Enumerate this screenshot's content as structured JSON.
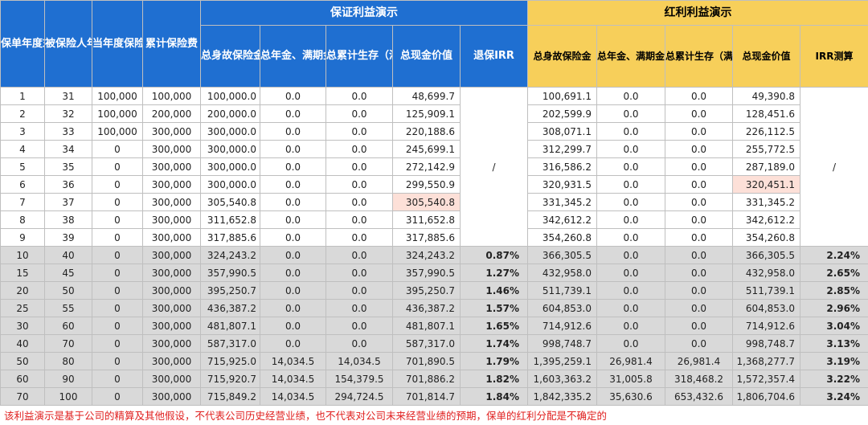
{
  "headers": {
    "policy_year": "保单年度末",
    "insured_age": "被保险人年龄",
    "annual_premium": "当年度保险费",
    "cumulative_premium": "累计保险费",
    "guaranteed_title": "保证利益演示",
    "dividend_title": "红利利益演示",
    "guaranteed_cols": [
      "总身故保险金",
      "总年金、满期金和满期现金红利",
      "总累计生存（满期）保险金和满期现金红利",
      "总现金价值",
      "退保IRR"
    ],
    "dividend_cols": [
      "总身故保险金",
      "总年金、满期金和满期现金红利",
      "总累计生存（满期）保险金和满期现金红利",
      "总现金价值",
      "IRR测算"
    ]
  },
  "merged_placeholder": "/",
  "rows": [
    {
      "year": "1",
      "age": "31",
      "prem": "100,000",
      "cum": "100,000",
      "g_death": "100,000.0",
      "g_ann": "0.0",
      "g_surv": "0.0",
      "g_cash": "48,699.7",
      "g_irr": "",
      "d_death": "100,691.1",
      "d_ann": "0.0",
      "d_surv": "0.0",
      "d_cash": "49,390.8",
      "d_irr": ""
    },
    {
      "year": "2",
      "age": "32",
      "prem": "100,000",
      "cum": "200,000",
      "g_death": "200,000.0",
      "g_ann": "0.0",
      "g_surv": "0.0",
      "g_cash": "125,909.1",
      "g_irr": "",
      "d_death": "202,599.9",
      "d_ann": "0.0",
      "d_surv": "0.0",
      "d_cash": "128,451.6",
      "d_irr": ""
    },
    {
      "year": "3",
      "age": "33",
      "prem": "100,000",
      "cum": "300,000",
      "g_death": "300,000.0",
      "g_ann": "0.0",
      "g_surv": "0.0",
      "g_cash": "220,188.6",
      "g_irr": "",
      "d_death": "308,071.1",
      "d_ann": "0.0",
      "d_surv": "0.0",
      "d_cash": "226,112.5",
      "d_irr": ""
    },
    {
      "year": "4",
      "age": "34",
      "prem": "0",
      "cum": "300,000",
      "g_death": "300,000.0",
      "g_ann": "0.0",
      "g_surv": "0.0",
      "g_cash": "245,699.1",
      "g_irr": "",
      "d_death": "312,299.7",
      "d_ann": "0.0",
      "d_surv": "0.0",
      "d_cash": "255,772.5",
      "d_irr": ""
    },
    {
      "year": "5",
      "age": "35",
      "prem": "0",
      "cum": "300,000",
      "g_death": "300,000.0",
      "g_ann": "0.0",
      "g_surv": "0.0",
      "g_cash": "272,142.9",
      "g_irr": "",
      "d_death": "316,586.2",
      "d_ann": "0.0",
      "d_surv": "0.0",
      "d_cash": "287,189.0",
      "d_irr": ""
    },
    {
      "year": "6",
      "age": "36",
      "prem": "0",
      "cum": "300,000",
      "g_death": "300,000.0",
      "g_ann": "0.0",
      "g_surv": "0.0",
      "g_cash": "299,550.9",
      "g_irr": "",
      "d_death": "320,931.5",
      "d_ann": "0.0",
      "d_surv": "0.0",
      "d_cash": "320,451.1",
      "d_irr": ""
    },
    {
      "year": "7",
      "age": "37",
      "prem": "0",
      "cum": "300,000",
      "g_death": "305,540.8",
      "g_ann": "0.0",
      "g_surv": "0.0",
      "g_cash": "305,540.8",
      "g_irr": "",
      "d_death": "331,345.2",
      "d_ann": "0.0",
      "d_surv": "0.0",
      "d_cash": "331,345.2",
      "d_irr": ""
    },
    {
      "year": "8",
      "age": "38",
      "prem": "0",
      "cum": "300,000",
      "g_death": "311,652.8",
      "g_ann": "0.0",
      "g_surv": "0.0",
      "g_cash": "311,652.8",
      "g_irr": "",
      "d_death": "342,612.2",
      "d_ann": "0.0",
      "d_surv": "0.0",
      "d_cash": "342,612.2",
      "d_irr": ""
    },
    {
      "year": "9",
      "age": "39",
      "prem": "0",
      "cum": "300,000",
      "g_death": "317,885.6",
      "g_ann": "0.0",
      "g_surv": "0.0",
      "g_cash": "317,885.6",
      "g_irr": "",
      "d_death": "354,260.8",
      "d_ann": "0.0",
      "d_surv": "0.0",
      "d_cash": "354,260.8",
      "d_irr": ""
    },
    {
      "year": "10",
      "age": "40",
      "prem": "0",
      "cum": "300,000",
      "g_death": "324,243.2",
      "g_ann": "0.0",
      "g_surv": "0.0",
      "g_cash": "324,243.2",
      "g_irr": "0.87%",
      "d_death": "366,305.5",
      "d_ann": "0.0",
      "d_surv": "0.0",
      "d_cash": "366,305.5",
      "d_irr": "2.24%"
    },
    {
      "year": "15",
      "age": "45",
      "prem": "0",
      "cum": "300,000",
      "g_death": "357,990.5",
      "g_ann": "0.0",
      "g_surv": "0.0",
      "g_cash": "357,990.5",
      "g_irr": "1.27%",
      "d_death": "432,958.0",
      "d_ann": "0.0",
      "d_surv": "0.0",
      "d_cash": "432,958.0",
      "d_irr": "2.65%"
    },
    {
      "year": "20",
      "age": "50",
      "prem": "0",
      "cum": "300,000",
      "g_death": "395,250.7",
      "g_ann": "0.0",
      "g_surv": "0.0",
      "g_cash": "395,250.7",
      "g_irr": "1.46%",
      "d_death": "511,739.1",
      "d_ann": "0.0",
      "d_surv": "0.0",
      "d_cash": "511,739.1",
      "d_irr": "2.85%"
    },
    {
      "year": "25",
      "age": "55",
      "prem": "0",
      "cum": "300,000",
      "g_death": "436,387.2",
      "g_ann": "0.0",
      "g_surv": "0.0",
      "g_cash": "436,387.2",
      "g_irr": "1.57%",
      "d_death": "604,853.0",
      "d_ann": "0.0",
      "d_surv": "0.0",
      "d_cash": "604,853.0",
      "d_irr": "2.96%"
    },
    {
      "year": "30",
      "age": "60",
      "prem": "0",
      "cum": "300,000",
      "g_death": "481,807.1",
      "g_ann": "0.0",
      "g_surv": "0.0",
      "g_cash": "481,807.1",
      "g_irr": "1.65%",
      "d_death": "714,912.6",
      "d_ann": "0.0",
      "d_surv": "0.0",
      "d_cash": "714,912.6",
      "d_irr": "3.04%"
    },
    {
      "year": "40",
      "age": "70",
      "prem": "0",
      "cum": "300,000",
      "g_death": "587,317.0",
      "g_ann": "0.0",
      "g_surv": "0.0",
      "g_cash": "587,317.0",
      "g_irr": "1.74%",
      "d_death": "998,748.7",
      "d_ann": "0.0",
      "d_surv": "0.0",
      "d_cash": "998,748.7",
      "d_irr": "3.13%"
    },
    {
      "year": "50",
      "age": "80",
      "prem": "0",
      "cum": "300,000",
      "g_death": "715,925.0",
      "g_ann": "14,034.5",
      "g_surv": "14,034.5",
      "g_cash": "701,890.5",
      "g_irr": "1.79%",
      "d_death": "1,395,259.1",
      "d_ann": "26,981.4",
      "d_surv": "26,981.4",
      "d_cash": "1,368,277.7",
      "d_irr": "3.19%"
    },
    {
      "year": "60",
      "age": "90",
      "prem": "0",
      "cum": "300,000",
      "g_death": "715,920.7",
      "g_ann": "14,034.5",
      "g_surv": "154,379.5",
      "g_cash": "701,886.2",
      "g_irr": "1.82%",
      "d_death": "1,603,363.2",
      "d_ann": "31,005.8",
      "d_surv": "318,468.2",
      "d_cash": "1,572,357.4",
      "d_irr": "3.22%"
    },
    {
      "year": "70",
      "age": "100",
      "prem": "0",
      "cum": "300,000",
      "g_death": "715,849.2",
      "g_ann": "14,034.5",
      "g_surv": "294,724.5",
      "g_cash": "701,814.7",
      "g_irr": "1.84%",
      "d_death": "1,842,335.2",
      "d_ann": "35,630.6",
      "d_surv": "653,432.6",
      "d_cash": "1,806,704.6",
      "d_irr": "3.24%"
    }
  ],
  "footnote": "该利益演示是基于公司的精算及其他假设，不代表公司历史经营业绩，也不代表对公司未来经营业绩的预期，保单的红利分配是不确定的",
  "colors": {
    "header_blue": "#1f6fd1",
    "header_gold": "#f7cf5a",
    "highlight_red": "#e0201f",
    "highlight_pink": "#fde0d8",
    "shade_grey": "#d9d9d9"
  }
}
